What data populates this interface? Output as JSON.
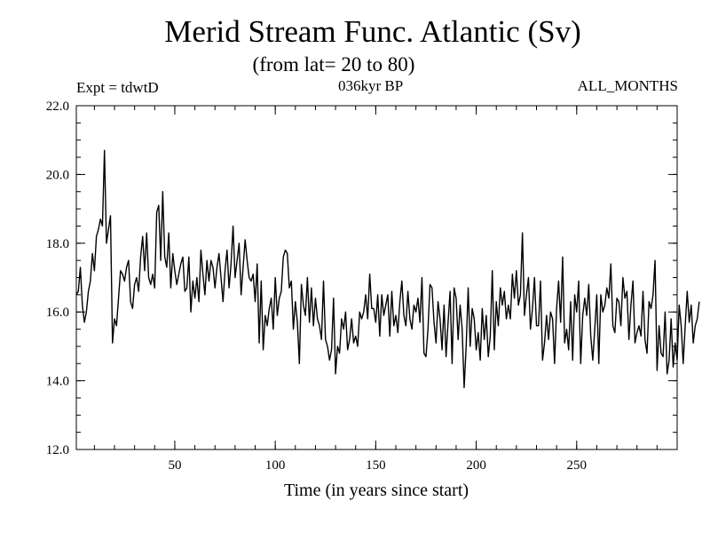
{
  "chart_data": {
    "type": "line",
    "title": "Merid Stream Func. Atlantic (Sv)",
    "subtitle": "(from lat= 20 to 80)",
    "experiment_label": "Expt = tdwtD",
    "period_label": "036kyr BP",
    "months_label": "ALL_MONTHS",
    "xlabel": "Time (in years since start)",
    "ylabel": "",
    "xlim": [
      1,
      300
    ],
    "ylim": [
      12.0,
      22.0
    ],
    "x_ticks": [
      50,
      100,
      150,
      200,
      250
    ],
    "x_tick_labels": [
      "50",
      "100",
      "150",
      "200",
      "250"
    ],
    "y_ticks": [
      12.0,
      14.0,
      16.0,
      18.0,
      20.0,
      22.0
    ],
    "y_tick_labels": [
      "12.0",
      "14.0",
      "16.0",
      "18.0",
      "20.0",
      "22.0"
    ],
    "series": [
      {
        "name": "Merid Stream Func. Atlantic",
        "x_start": 1,
        "x_step": 1,
        "values": [
          16.5,
          16.6,
          17.3,
          16.2,
          15.7,
          16.0,
          16.6,
          16.9,
          17.7,
          17.2,
          18.2,
          18.4,
          18.7,
          18.5,
          20.7,
          18.0,
          18.4,
          18.8,
          15.1,
          15.8,
          15.6,
          16.4,
          17.2,
          17.1,
          16.9,
          17.3,
          17.5,
          16.3,
          16.1,
          16.8,
          17.0,
          16.6,
          17.6,
          18.2,
          17.2,
          18.3,
          17.0,
          16.8,
          17.1,
          16.7,
          18.9,
          19.1,
          17.5,
          19.5,
          17.6,
          17.3,
          18.3,
          16.7,
          17.7,
          17.2,
          16.8,
          17.1,
          17.4,
          17.6,
          16.6,
          16.7,
          17.6,
          16.0,
          16.9,
          16.4,
          17.0,
          16.3,
          17.8,
          17.1,
          16.5,
          17.5,
          16.9,
          17.5,
          17.3,
          16.7,
          17.3,
          17.7,
          17.0,
          16.3,
          17.2,
          17.8,
          16.7,
          17.4,
          18.5,
          17.0,
          17.5,
          18.0,
          16.5,
          17.3,
          18.1,
          17.5,
          17.0,
          16.9,
          17.1,
          16.3,
          17.4,
          15.1,
          16.9,
          14.9,
          15.9,
          15.6,
          16.1,
          16.4,
          15.5,
          17.0,
          15.9,
          16.4,
          16.6,
          17.6,
          17.8,
          17.7,
          16.7,
          16.9,
          15.5,
          16.3,
          15.7,
          14.5,
          16.8,
          16.2,
          15.9,
          17.0,
          15.7,
          16.7,
          15.6,
          16.4,
          15.8,
          15.6,
          15.2,
          16.9,
          15.2,
          15.0,
          14.6,
          14.9,
          16.4,
          14.2,
          15.0,
          14.8,
          15.8,
          15.5,
          16.0,
          14.9,
          15.2,
          15.8,
          15.1,
          15.3,
          15.0,
          16.0,
          15.8,
          16.0,
          16.5,
          15.8,
          17.1,
          16.1,
          16.1,
          15.7,
          16.5,
          15.3,
          16.5,
          15.9,
          16.2,
          16.5,
          15.3,
          16.6,
          15.6,
          15.9,
          15.4,
          16.3,
          16.9,
          15.9,
          15.6,
          16.6,
          15.8,
          15.5,
          16.2,
          16.0,
          16.4,
          15.7,
          17.0,
          14.8,
          14.7,
          15.5,
          16.8,
          16.7,
          15.7,
          15.1,
          16.3,
          15.8,
          14.9,
          16.2,
          14.7,
          15.7,
          16.6,
          14.5,
          16.7,
          16.4,
          15.2,
          16.2,
          15.5,
          13.8,
          15.0,
          16.7,
          15.0,
          16.1,
          15.8,
          14.9,
          15.4,
          14.6,
          16.1,
          15.2,
          15.9,
          14.7,
          15.3,
          17.2,
          14.9,
          16.3,
          15.6,
          16.7,
          16.2,
          16.6,
          15.8,
          16.2,
          15.8,
          17.1,
          16.4,
          17.2,
          16.2,
          16.5,
          18.3,
          15.9,
          16.5,
          17.0,
          15.5,
          16.1,
          17.0,
          15.6,
          15.6,
          16.9,
          14.6,
          15.1,
          15.9,
          15.2,
          16.0,
          15.8,
          14.5,
          16.1,
          16.9,
          15.7,
          17.6,
          15.1,
          15.5,
          14.9,
          16.3,
          14.6,
          16.5,
          16.0,
          16.9,
          14.5,
          15.9,
          16.4,
          15.9,
          16.8,
          15.3,
          14.6,
          15.5,
          16.5,
          14.5,
          16.5,
          16.0,
          16.2,
          16.7,
          16.4,
          17.4,
          15.6,
          15.4,
          16.4,
          16.3,
          15.6,
          17.0,
          16.4,
          16.6,
          15.2,
          16.2,
          16.9,
          15.1,
          15.4,
          15.6,
          15.3,
          16.6,
          15.2,
          14.8,
          16.3,
          16.1,
          16.5,
          17.5,
          14.3,
          15.6,
          14.8,
          14.7,
          16.0,
          14.2,
          14.6,
          15.8,
          14.4,
          15.1,
          14.6,
          16.2,
          15.6,
          14.5,
          15.6,
          16.6,
          15.7,
          16.2,
          15.1,
          15.6,
          15.8,
          16.3
        ]
      }
    ]
  }
}
